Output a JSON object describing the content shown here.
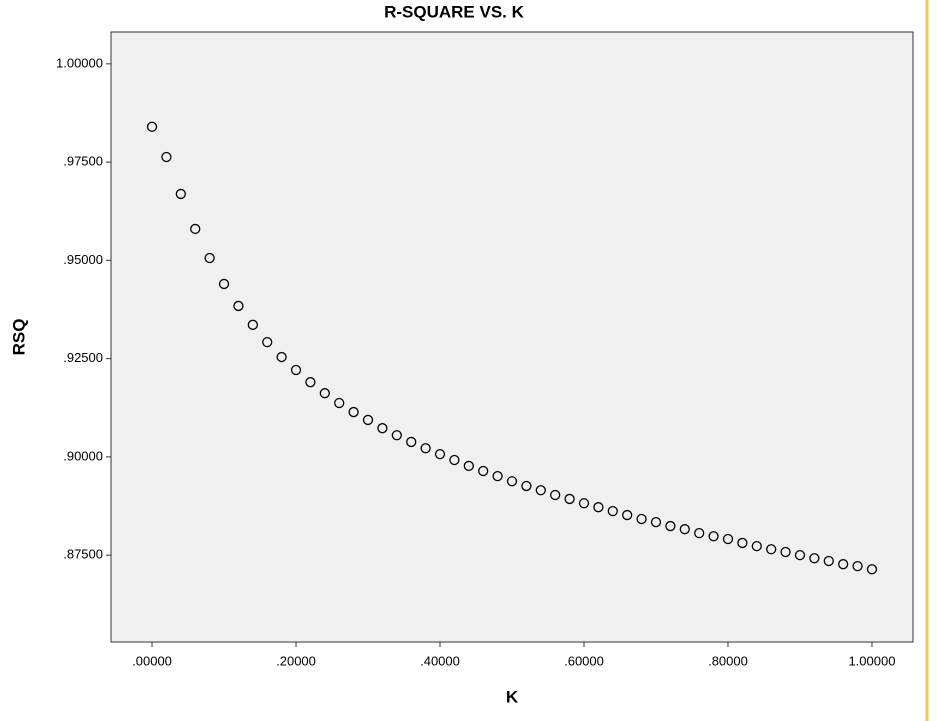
{
  "chart_data": {
    "type": "scatter",
    "title": "R-SQUARE VS. K",
    "x_label": "K",
    "y_label": "RSQ",
    "series": [
      {
        "name": "RSQ",
        "color": "#000000",
        "x": [
          0,
          0.02,
          0.04,
          0.06,
          0.08,
          0.1,
          0.12,
          0.14,
          0.16,
          0.18,
          0.2,
          0.22,
          0.24,
          0.26,
          0.28,
          0.3,
          0.32,
          0.34,
          0.36,
          0.38,
          0.4,
          0.42,
          0.44,
          0.46,
          0.48,
          0.5,
          0.52,
          0.54,
          0.56,
          0.58,
          0.6,
          0.62,
          0.64,
          0.66,
          0.68,
          0.7,
          0.72,
          0.74,
          0.76,
          0.78,
          0.8,
          0.82,
          0.84,
          0.86,
          0.88,
          0.9,
          0.92,
          0.94,
          0.96,
          0.98,
          1.0
        ],
        "values": [
          0.984,
          0.9763,
          0.9669,
          0.958,
          0.9506,
          0.944,
          0.9384,
          0.9336,
          0.9292,
          0.9254,
          0.9221,
          0.919,
          0.9162,
          0.9137,
          0.9114,
          0.9094,
          0.9073,
          0.9055,
          0.9038,
          0.9022,
          0.9007,
          0.8992,
          0.8977,
          0.8964,
          0.8951,
          0.8938,
          0.8926,
          0.8915,
          0.8903,
          0.8893,
          0.8882,
          0.8872,
          0.8862,
          0.8852,
          0.8842,
          0.8834,
          0.8824,
          0.8816,
          0.8806,
          0.8798,
          0.8791,
          0.8781,
          0.8773,
          0.8765,
          0.8758,
          0.875,
          0.8742,
          0.8735,
          0.8727,
          0.8722,
          0.8714
        ]
      }
    ],
    "xlim": [
      -0.057,
      1.057
    ],
    "ylim": [
      0.8529,
      1.0081
    ],
    "xticks": [
      {
        "value": 0,
        "label": ".00000"
      },
      {
        "value": 0.2,
        "label": ".20000"
      },
      {
        "value": 0.4,
        "label": ".40000"
      },
      {
        "value": 0.6,
        "label": ".60000"
      },
      {
        "value": 0.8,
        "label": ".80000"
      },
      {
        "value": 1,
        "label": "1.00000"
      }
    ],
    "yticks": [
      {
        "value": 0.875,
        "label": ".87500"
      },
      {
        "value": 0.9,
        "label": ".90000"
      },
      {
        "value": 0.925,
        "label": ".92500"
      },
      {
        "value": 0.95,
        "label": ".95000"
      },
      {
        "value": 0.975,
        "label": ".97500"
      },
      {
        "value": 1,
        "label": "1.00000"
      }
    ],
    "grid": false,
    "plot_background": "#f0f0f0"
  }
}
